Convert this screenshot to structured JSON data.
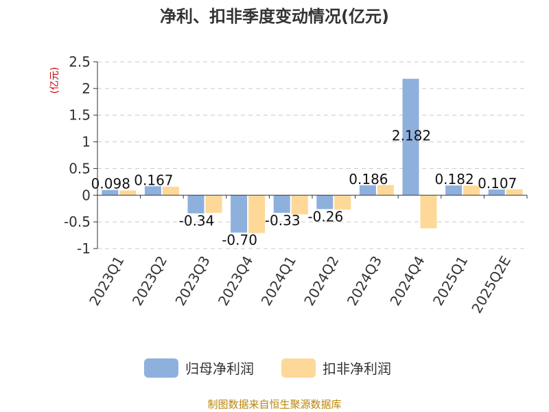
{
  "chart_data": {
    "type": "bar",
    "title": "净利、扣非季度变动情况(亿元)",
    "ylabel": "(亿元)",
    "xlabel": "",
    "categories": [
      "2023Q1",
      "2023Q2",
      "2023Q3",
      "2023Q4",
      "2024Q1",
      "2024Q2",
      "2024Q3",
      "2024Q4",
      "2025Q1",
      "2025Q2E"
    ],
    "ylim": [
      -1,
      2.5
    ],
    "yticks": [
      2.5,
      2,
      1.5,
      1,
      0.5,
      0,
      -0.5,
      -1
    ],
    "ytick_labels": [
      "2.5",
      "2",
      "1.5",
      "1",
      "0.5",
      "0",
      "-0.5",
      "-1"
    ],
    "grid": true,
    "legend_position": "bottom",
    "series": [
      {
        "name": "归母净利润",
        "color": "#8eb0dc",
        "values": [
          0.098,
          0.167,
          -0.34,
          -0.7,
          -0.33,
          -0.26,
          0.186,
          2.182,
          0.182,
          0.107
        ],
        "labels": [
          "0.098",
          "0.167",
          "-0.34",
          "-0.70",
          "-0.33",
          "-0.26",
          "0.186",
          "2.182",
          "0.182",
          "0.107"
        ]
      },
      {
        "name": "扣非净利润",
        "color": "#fdd898",
        "values": [
          0.09,
          0.16,
          -0.33,
          -0.71,
          -0.36,
          -0.27,
          0.19,
          -0.62,
          0.18,
          0.11
        ]
      }
    ]
  },
  "source": "制图数据来自恒生聚源数据库"
}
